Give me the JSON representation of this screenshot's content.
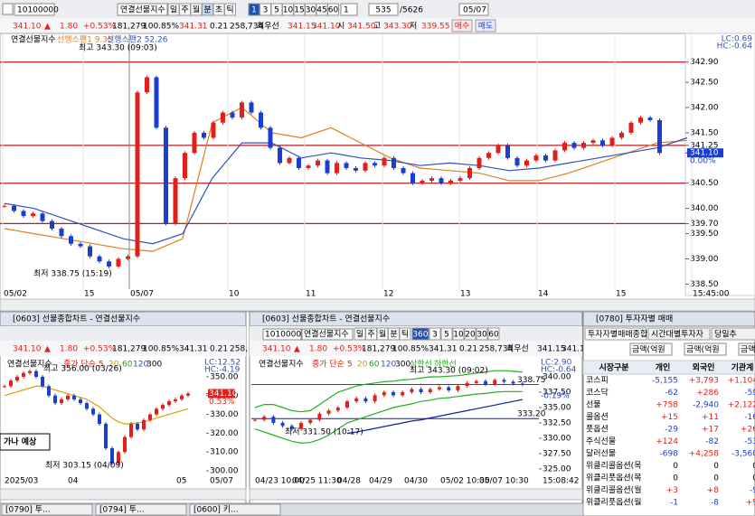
{
  "toolbar": {
    "code": "10100000",
    "name": "연결선물지수",
    "periods": [
      "일",
      "주",
      "월",
      "분",
      "초",
      "틱"
    ],
    "intervals": [
      "1",
      "3",
      "5",
      "10",
      "15",
      "30",
      "45",
      "60"
    ],
    "count": "1",
    "position": "535",
    "total": "/5626",
    "date": "05/07"
  },
  "quote": {
    "items": [
      "341.10",
      "▲",
      "1.80",
      "+0.53%",
      "181,279",
      "100.85%",
      "341.31",
      "0.21",
      "258,734",
      "최우선",
      "341.15",
      "341.10",
      "시",
      "341.50",
      "고",
      "343.30",
      "저",
      "339.55"
    ],
    "colors": [
      "#e0201a",
      "#e0201a",
      "#e0201a",
      "#e0201a",
      "#000",
      "#000",
      "#e0201a",
      "#000",
      "#000",
      "#000",
      "#e0201a",
      "#e0201a",
      "#000",
      "#e0201a",
      "#000",
      "#e0201a",
      "#000",
      "#e0201a"
    ],
    "buy": "매수",
    "sell": "매도"
  },
  "main_chart": {
    "legend": [
      "연결선물지수",
      "선행스팬1 9.35",
      "선행스팬2 52.26"
    ],
    "legend_colors": [
      "#000",
      "#e08020",
      "#3050c0"
    ],
    "lc": "LC:0.69",
    "hc": "HC:-0.64",
    "high_note": "최고 343.30 (09:03)",
    "low_note": "최저 338.75 (15:19)",
    "ylim": [
      338.4,
      343.45
    ],
    "yticks": [
      {
        "value": 342.9,
        "label": "342.90"
      },
      {
        "value": 342.5,
        "label": "342.50"
      },
      {
        "value": 342,
        "label": "342.00"
      },
      {
        "value": 341.5,
        "label": "341.50"
      },
      {
        "value": 341.25,
        "label": "341.25"
      },
      {
        "value": 340.5,
        "label": "340.50"
      },
      {
        "value": 340,
        "label": "340.00"
      },
      {
        "value": 339.7,
        "label": "339.70"
      },
      {
        "value": 339.5,
        "label": "339.50"
      },
      {
        "value": 339,
        "label": "339.00"
      },
      {
        "value": 338.5,
        "label": "338.50"
      }
    ],
    "levels": [
      342.9,
      341.25,
      340.5,
      339.7
    ],
    "last": {
      "value": 341.1,
      "label": "341.10"
    },
    "last_rate": "0.00%",
    "x_labels": [
      "05/02",
      "15",
      "05/07",
      "10",
      "11",
      "12",
      "13",
      "14",
      "15",
      "15:45:00"
    ],
    "closes": [
      340.05,
      339.95,
      339.85,
      339.9,
      339.75,
      339.6,
      339.45,
      339.3,
      339.25,
      339.05,
      338.95,
      338.85,
      339.0,
      339.05,
      342.3,
      342.6,
      341.6,
      339.7,
      340.6,
      341.1,
      341.5,
      341.4,
      341.7,
      341.9,
      341.8,
      342.1,
      341.9,
      341.6,
      341.2,
      340.9,
      341.0,
      340.8,
      340.85,
      340.95,
      340.7,
      340.9,
      340.8,
      340.75,
      340.9,
      340.85,
      341.0,
      340.8,
      340.7,
      340.5,
      340.55,
      340.6,
      340.5,
      340.55,
      340.6,
      340.8,
      341.0,
      341.1,
      341.25,
      341.0,
      340.85,
      340.95,
      341.05,
      340.95,
      341.15,
      341.3,
      341.2,
      341.3,
      341.35,
      341.25,
      341.4,
      341.5,
      341.7,
      341.8,
      341.75,
      341.1
    ],
    "span1": {
      "color": "#e08020",
      "values": [
        339.6,
        339.5,
        339.4,
        339.3,
        339.2,
        339.15,
        339.4,
        341.7,
        342.0,
        341.5,
        341.4,
        341.6,
        341.3,
        341.0,
        340.8,
        340.75,
        340.7,
        340.55,
        340.55,
        340.7,
        340.9,
        341.1,
        341.3,
        341.35
      ]
    },
    "span2": {
      "color": "#3050c0",
      "values": [
        340.1,
        340.0,
        339.8,
        339.6,
        339.4,
        339.3,
        339.5,
        340.6,
        341.3,
        341.3,
        341.0,
        341.1,
        341.0,
        340.95,
        340.85,
        340.9,
        340.85,
        340.75,
        340.8,
        340.9,
        341.0,
        341.1,
        341.2,
        341.4
      ]
    }
  },
  "left_panel": {
    "title": "[0603] 선물종합차트 - 연결선물지수",
    "quote": [
      "341.10",
      "▲",
      "1.80",
      "+0.53%",
      "181,279",
      "100.85%",
      "341.31",
      "0.21",
      "258,"
    ],
    "legend": [
      "연결선물지수",
      "종가 단순 5",
      "20",
      "60",
      "120",
      "300"
    ],
    "legend_colors": [
      "#000",
      "#e0201a",
      "#c0a000",
      "#20a020",
      "#3050c0",
      "#000"
    ],
    "high_note": "최고 356.00 (03/26)",
    "low_note": "최저 303.15 (04/09)",
    "note": "가나 예상",
    "lc": "LC:12.52",
    "hc": "HC:-4.19",
    "last": {
      "value": 341.1,
      "label": "341.10"
    },
    "last_rate": "0.53%",
    "ylim": [
      298.1,
      359.1
    ],
    "yticks": [
      {
        "value": 350,
        "label": "350.00"
      },
      {
        "value": 340,
        "label": "340.00"
      },
      {
        "value": 330,
        "label": "330.00"
      },
      {
        "value": 320,
        "label": "320.00"
      },
      {
        "value": 310,
        "label": "310.00"
      },
      {
        "value": 300,
        "label": "300.00"
      }
    ],
    "x_labels": [
      "2025/03",
      "04",
      "05",
      "05/07"
    ],
    "closes": [
      345,
      348,
      350,
      352,
      353,
      350,
      345,
      340,
      336,
      338,
      340,
      338,
      336,
      333,
      330,
      325,
      312,
      304,
      310,
      318,
      325,
      322,
      327,
      330,
      333,
      335,
      337,
      338,
      340,
      341.1
    ],
    "ma": {
      "color": "#e0a000",
      "values": [
        340,
        341,
        342,
        343,
        344,
        345,
        345,
        344,
        343,
        342,
        341,
        340,
        339,
        338,
        336,
        334,
        331,
        328,
        326,
        325,
        325,
        325.5,
        326,
        327,
        328,
        329,
        330,
        331,
        332,
        333
      ]
    }
  },
  "mid_panel": {
    "title": "[0603] 선물종합차트 - 연결선물지수",
    "code": "10100000",
    "name": "연결선물지수",
    "periods": [
      "일",
      "주",
      "월",
      "분",
      "틱"
    ],
    "intervals": [
      "360",
      "3",
      "5",
      "10",
      "20",
      "30",
      "60"
    ],
    "quote": [
      "341.10",
      "▲",
      "1.80",
      "+0.53%",
      "181,279",
      "100.85%",
      "341.31",
      "0.21",
      "258,734",
      "최우선",
      "341.15",
      "341.10"
    ],
    "legend": [
      "연결선물지수",
      "종가 단순 5",
      "20",
      "60",
      "120",
      "300",
      "상한선",
      "하한선"
    ],
    "legend_colors": [
      "#000",
      "#e0201a",
      "#c0a000",
      "#20a020",
      "#3050c0",
      "#000",
      "#20b020",
      "#20b020"
    ],
    "high_note": "최고 343.30 (09:02)",
    "low_note": "최저 331.50 (10:17)",
    "lc": "LC:2.90",
    "hc": "HC:-0.64",
    "rate": "-0.19%",
    "ylim": [
      324.1,
      342.8
    ],
    "yticks": [
      {
        "value": 340,
        "label": "340.00"
      },
      {
        "value": 337.5,
        "label": "337.50"
      },
      {
        "value": 335,
        "label": "335.00"
      },
      {
        "value": 332.5,
        "label": "332.50"
      },
      {
        "value": 330,
        "label": "330.00"
      },
      {
        "value": 327.5,
        "label": "327.50"
      },
      {
        "value": 325,
        "label": "325.00"
      }
    ],
    "levels": [
      {
        "value": 338.75,
        "label": "338.75"
      },
      {
        "value": 333.2,
        "label": "333.20"
      }
    ],
    "x_labels": [
      "04/23 10:00",
      "04/25 11:30",
      "04/28",
      "04/29",
      "04/30",
      "05/02 10:30",
      "05/07 10:30",
      "15:08:42"
    ],
    "closes": [
      333,
      333.5,
      332.5,
      332,
      331.5,
      332.5,
      333,
      334,
      334.5,
      335,
      336,
      336.5,
      336,
      337,
      337.5,
      337,
      337.5,
      338,
      337.5,
      338,
      338.3,
      337.8,
      338.5,
      339,
      339.3,
      338.8,
      339.5,
      339.2,
      338.9,
      338.75
    ],
    "upper": {
      "color": "#20b020",
      "values": [
        335,
        335.5,
        335.5,
        335,
        334.5,
        334.3,
        334.5,
        335.5,
        336.5,
        337.5,
        338,
        338.5,
        338.8,
        339,
        339.2,
        339.3,
        339.5,
        339.6,
        339.8,
        340,
        340,
        340.1,
        340.2,
        340.4,
        340.6,
        340.8,
        341,
        341,
        340.9,
        340.8
      ]
    },
    "lower": {
      "color": "#20b020",
      "values": [
        331.5,
        331,
        330.5,
        330,
        329.5,
        329.2,
        329.3,
        329.8,
        330.5,
        331.5,
        332.5,
        333,
        333.5,
        334,
        334.5,
        335,
        335.3,
        335.6,
        336,
        336.2,
        336.5,
        336.6,
        336.8,
        337,
        337.2,
        337.3,
        337.5,
        337.6,
        337.6,
        337.6
      ]
    },
    "trend": {
      "color": "#1020a0",
      "values": [
        null,
        null,
        null,
        null,
        null,
        null,
        null,
        null,
        null,
        null,
        330.8,
        331,
        331.3,
        331.6,
        331.9,
        332.2,
        332.5,
        332.8,
        333,
        333.3,
        333.6,
        333.9,
        334.2,
        334.5,
        334.8,
        335.1,
        335.4,
        335.7,
        336,
        336.3
      ]
    }
  },
  "right_panel": {
    "title": "[0780] 투자자별 매매",
    "tabs": [
      "투자자별매매종합",
      "시간대별투자자",
      "당일추"
    ],
    "unit": "금액(억원",
    "unit2": "금액(억원",
    "unit3": "금액",
    "header": [
      "시장구분",
      "개인",
      "외국인",
      "기관계"
    ],
    "rows": [
      [
        "코스피",
        "-5,155",
        "+3,793",
        "+1,104"
      ],
      [
        "코스닥",
        "-62",
        "+286",
        "-59"
      ],
      [
        "선물",
        "+758",
        "-2,940",
        "+2,122"
      ],
      [
        "콜옵션",
        "+15",
        "+11",
        "-16"
      ],
      [
        "풋옵션",
        "-29",
        "+17",
        "+26"
      ],
      [
        "주식선물",
        "+124",
        "-82",
        "-53"
      ],
      [
        "달러선물",
        "-698",
        "+4,258",
        "-3,560"
      ],
      [
        "위클리콜옵션(목",
        "0",
        "0",
        "0"
      ],
      [
        "위클리풋옵션(목",
        "0",
        "0",
        "0"
      ],
      [
        "위클리콜옵션(월",
        "+3",
        "+8",
        "-9"
      ],
      [
        "위클리풋옵션(월",
        "-1",
        "-8",
        "+9"
      ]
    ]
  },
  "taskbar": [
    "[0790] 투...",
    "[0794] 투...",
    "[0600] 키..."
  ]
}
